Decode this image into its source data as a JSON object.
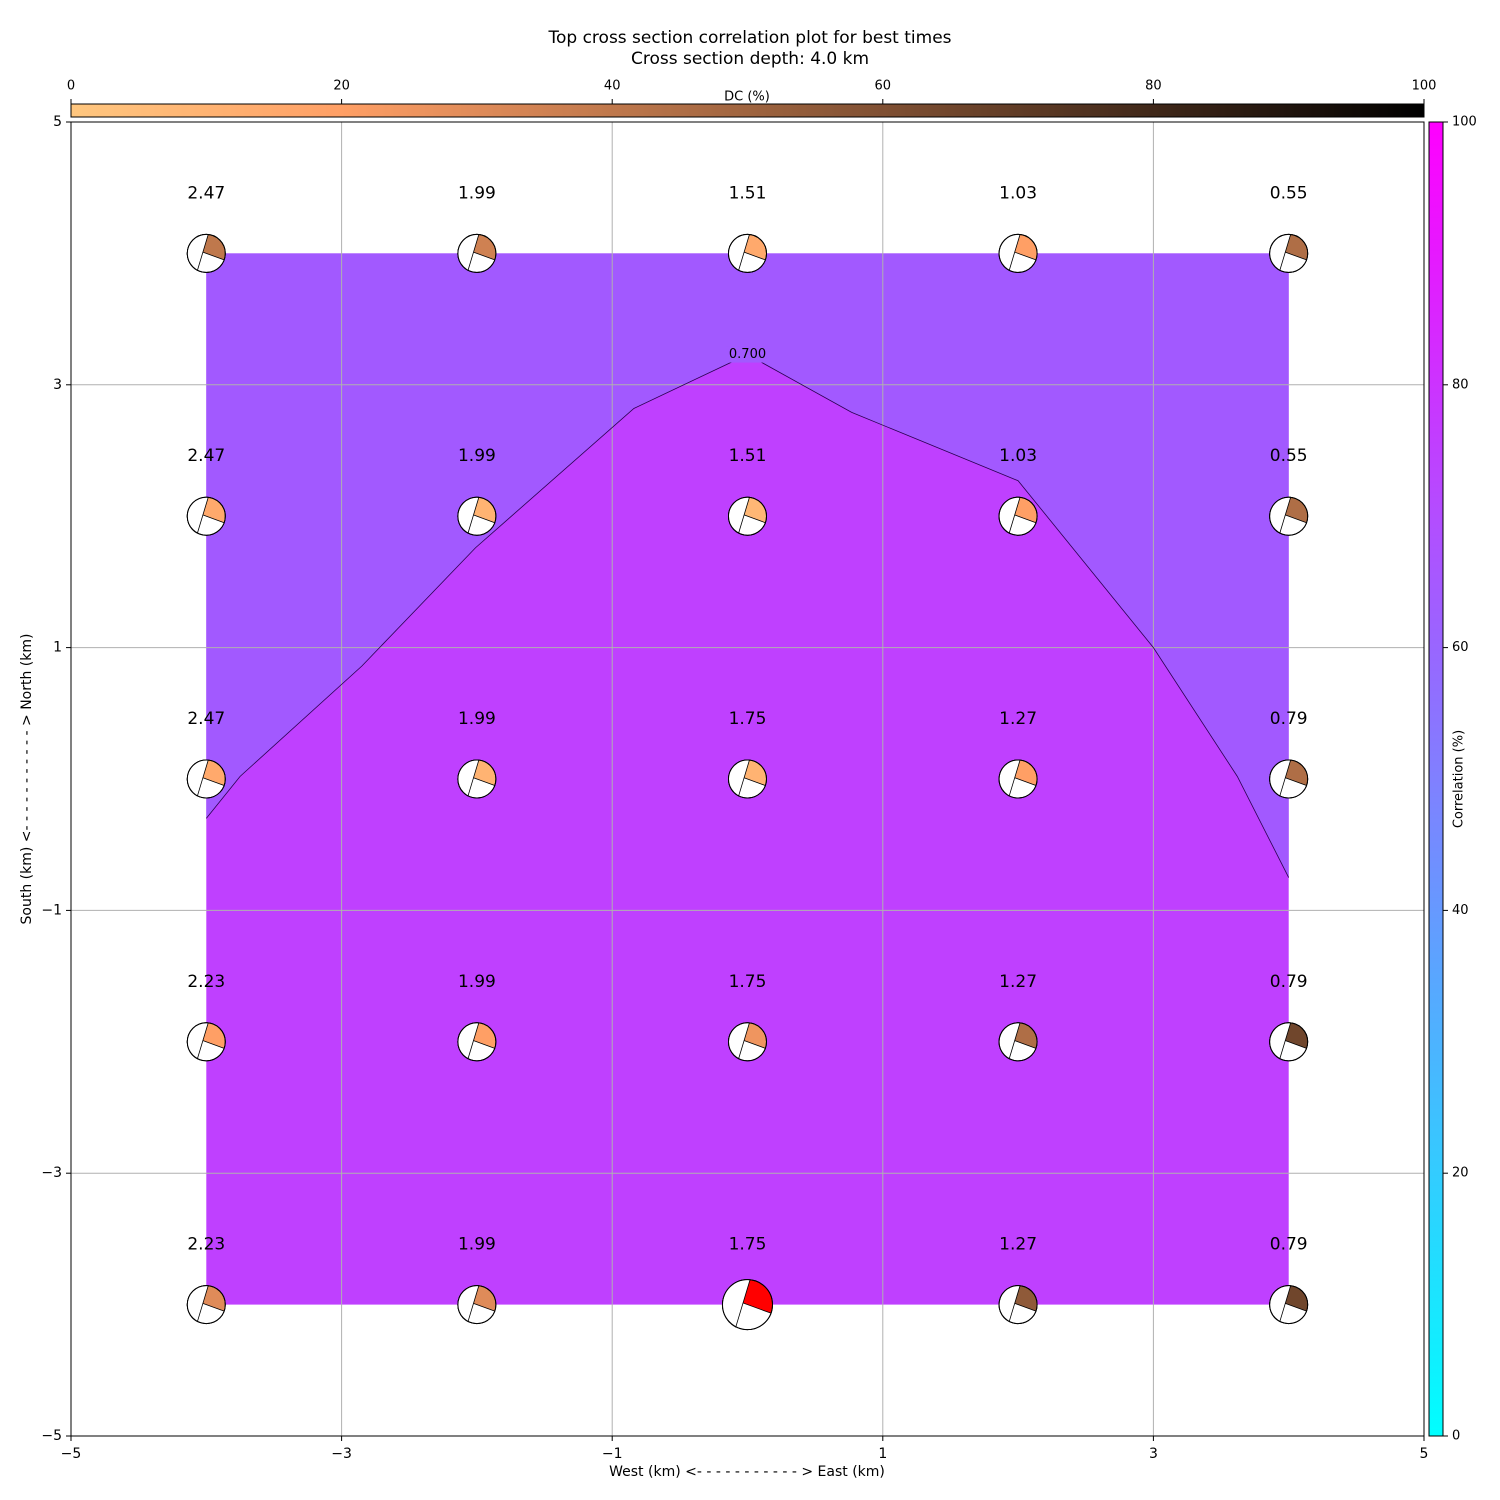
{
  "chart_data": {
    "type": "contour",
    "title": "Top cross section correlation plot for best times",
    "subtitle": "Cross section depth: 4.0 km",
    "xlabel": "West (km) <- - - - - - - - - - - > East (km)",
    "ylabel": "South (km) <- - - - - - - - - - - > North (km)",
    "xlim": [
      -5,
      5
    ],
    "ylim": [
      -5,
      5
    ],
    "xticks": [
      {
        "value": -5,
        "label": "−5"
      },
      {
        "value": -3,
        "label": "−3"
      },
      {
        "value": -1,
        "label": "−1"
      },
      1,
      3,
      5
    ],
    "yticks": [
      {
        "value": -5,
        "label": "−5"
      },
      {
        "value": -3,
        "label": "−3"
      },
      {
        "value": -1,
        "label": "−1"
      },
      1,
      3,
      5
    ],
    "grid": true,
    "grid_x": [
      -4,
      -2,
      0,
      2,
      4
    ],
    "grid_y": [
      4,
      2,
      0,
      -2,
      -4
    ],
    "times": [
      [
        2.47,
        1.99,
        1.51,
        1.03,
        0.55
      ],
      [
        2.47,
        1.99,
        1.51,
        1.03,
        0.55
      ],
      [
        2.47,
        1.99,
        1.75,
        1.27,
        0.79
      ],
      [
        2.23,
        1.99,
        1.75,
        1.27,
        0.79
      ],
      [
        2.23,
        1.99,
        1.75,
        1.27,
        0.79
      ]
    ],
    "dc": [
      [
        40,
        35,
        15,
        20,
        45
      ],
      [
        15,
        10,
        8,
        20,
        45
      ],
      [
        15,
        10,
        10,
        20,
        45
      ],
      [
        20,
        20,
        25,
        45,
        65
      ],
      [
        30,
        30,
        50,
        55,
        65
      ]
    ],
    "best_cell": [
      4,
      2
    ],
    "best_color": "#ff0000",
    "contour": {
      "level": {
        "value": 0.7,
        "label": "0.700"
      },
      "x": [
        -4,
        -3.75,
        -2.85,
        -2.01,
        -0.84,
        0,
        0.77,
        2.0,
        3.0,
        3.62,
        4.0
      ],
      "y": [
        -0.3,
        0.02,
        0.86,
        1.76,
        2.82,
        3.23,
        2.79,
        2.27,
        1.0,
        0.02,
        -0.75
      ],
      "fill_colors": [
        "#a259ff",
        "#bf40ff"
      ]
    },
    "dc_colorbar": {
      "label": "DC (%)",
      "lim": [
        0,
        100
      ],
      "ticks": [
        0,
        20,
        40,
        60,
        80,
        100
      ],
      "cmap": "copper_r"
    },
    "corr_colorbar": {
      "label": "Correlation (%)",
      "lim": [
        0,
        100
      ],
      "ticks": [
        0,
        20,
        40,
        60,
        80,
        100
      ],
      "cmap": "cool"
    }
  }
}
